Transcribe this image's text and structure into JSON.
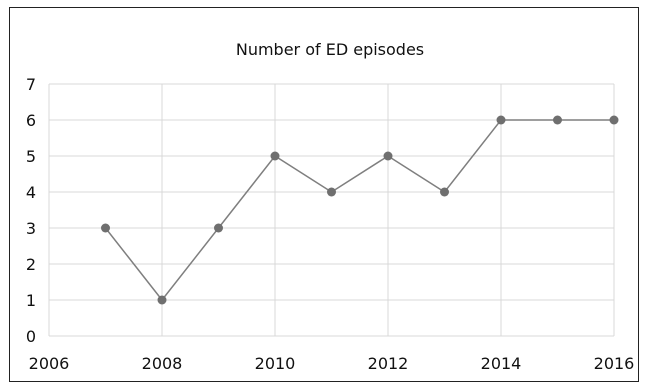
{
  "chart_data": {
    "type": "line",
    "title": "Number of ED episodes",
    "xlabel": "",
    "ylabel": "",
    "xlim": [
      2006,
      2016
    ],
    "ylim": [
      0,
      7
    ],
    "x_ticks": [
      2006,
      2008,
      2010,
      2012,
      2014,
      2016
    ],
    "y_ticks": [
      0,
      1,
      2,
      3,
      4,
      5,
      6,
      7
    ],
    "grid": true,
    "legend": "none",
    "series": [
      {
        "x": [
          2007,
          2008,
          2009,
          2010,
          2011,
          2012,
          2013,
          2014,
          2015,
          2016
        ],
        "values": [
          3,
          1,
          3,
          5,
          4,
          5,
          4,
          6,
          6,
          6
        ],
        "color": "#7f7f7f"
      }
    ]
  }
}
